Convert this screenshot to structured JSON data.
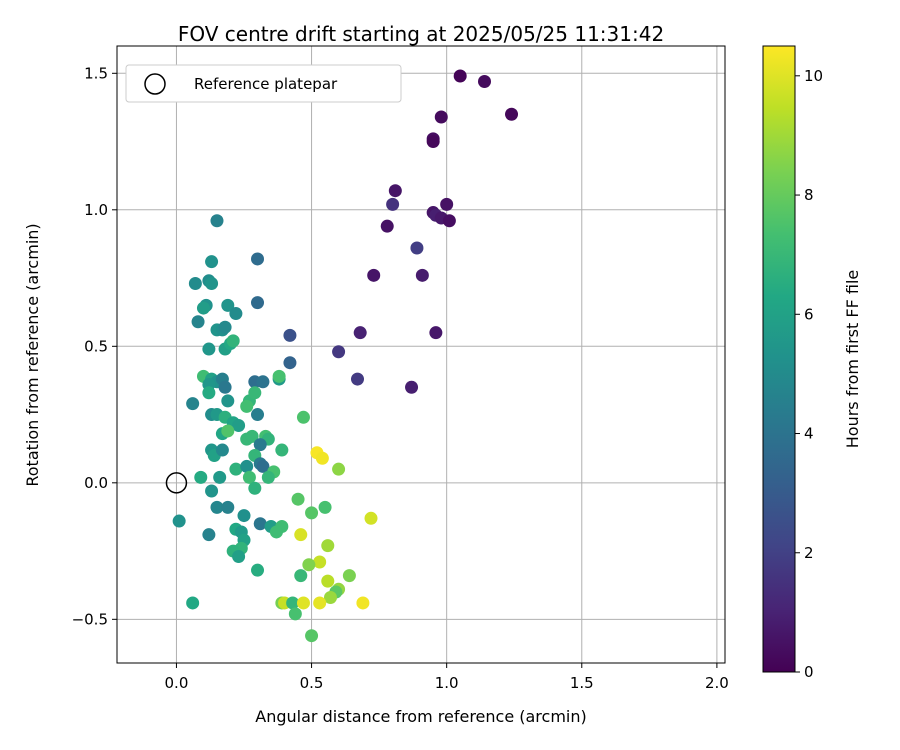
{
  "chart_data": {
    "type": "scatter",
    "title": "FOV centre drift starting at 2025/05/25 11:31:42",
    "xlabel": "Angular distance from reference (arcmin)",
    "ylabel": "Rotation from reference (arcmin)",
    "xlim": [
      -0.22,
      2.03
    ],
    "ylim": [
      -0.66,
      1.6
    ],
    "xticks": [
      0.0,
      0.5,
      1.0,
      1.5,
      2.0
    ],
    "xtick_labels": [
      "0.0",
      "0.5",
      "1.0",
      "1.5",
      "2.0"
    ],
    "yticks": [
      -0.5,
      0.0,
      0.5,
      1.0,
      1.5
    ],
    "ytick_labels": [
      "−0.5",
      "0.0",
      "0.5",
      "1.0",
      "1.5"
    ],
    "grid": true,
    "legend": {
      "placement": "top-left",
      "entries": [
        "Reference platepar"
      ]
    },
    "reference_point": {
      "x": 0.0,
      "y": 0.0,
      "label": "Reference platepar"
    },
    "colorbar": {
      "label": "Hours from first FF file",
      "range": [
        0,
        10.5
      ],
      "ticks": [
        0,
        2,
        4,
        6,
        8,
        10
      ],
      "tick_labels": [
        "0",
        "2",
        "4",
        "6",
        "8",
        "10"
      ],
      "colormap": "viridis"
    },
    "points": [
      {
        "x": 1.05,
        "y": 1.49,
        "c": 0.1
      },
      {
        "x": 1.14,
        "y": 1.47,
        "c": 0.3
      },
      {
        "x": 1.24,
        "y": 1.35,
        "c": 0.2
      },
      {
        "x": 0.98,
        "y": 1.34,
        "c": 0.3
      },
      {
        "x": 0.95,
        "y": 1.26,
        "c": 0.4
      },
      {
        "x": 0.95,
        "y": 1.25,
        "c": 0.2
      },
      {
        "x": 0.81,
        "y": 1.07,
        "c": 0.6
      },
      {
        "x": 0.8,
        "y": 1.02,
        "c": 1.5
      },
      {
        "x": 1.0,
        "y": 1.02,
        "c": 0.5
      },
      {
        "x": 0.95,
        "y": 0.99,
        "c": 0.6
      },
      {
        "x": 0.96,
        "y": 0.98,
        "c": 0.9
      },
      {
        "x": 0.98,
        "y": 0.97,
        "c": 0.7
      },
      {
        "x": 1.01,
        "y": 0.96,
        "c": 0.4
      },
      {
        "x": 0.78,
        "y": 0.94,
        "c": 0.5
      },
      {
        "x": 0.89,
        "y": 0.86,
        "c": 1.9
      },
      {
        "x": 0.73,
        "y": 0.76,
        "c": 0.6
      },
      {
        "x": 0.91,
        "y": 0.76,
        "c": 0.8
      },
      {
        "x": 0.68,
        "y": 0.55,
        "c": 1.0
      },
      {
        "x": 0.96,
        "y": 0.55,
        "c": 0.7
      },
      {
        "x": 0.6,
        "y": 0.48,
        "c": 1.7
      },
      {
        "x": 0.67,
        "y": 0.38,
        "c": 1.8
      },
      {
        "x": 0.87,
        "y": 0.35,
        "c": 0.9
      },
      {
        "x": 0.42,
        "y": 0.54,
        "c": 2.6
      },
      {
        "x": 0.42,
        "y": 0.44,
        "c": 3.3
      },
      {
        "x": 0.3,
        "y": 0.82,
        "c": 3.7
      },
      {
        "x": 0.3,
        "y": 0.66,
        "c": 3.6
      },
      {
        "x": 0.15,
        "y": 0.96,
        "c": 4.6
      },
      {
        "x": 0.07,
        "y": 0.73,
        "c": 5.0
      },
      {
        "x": 0.13,
        "y": 0.81,
        "c": 5.3
      },
      {
        "x": 0.12,
        "y": 0.74,
        "c": 5.1
      },
      {
        "x": 0.13,
        "y": 0.73,
        "c": 5.4
      },
      {
        "x": 0.11,
        "y": 0.65,
        "c": 5.3
      },
      {
        "x": 0.1,
        "y": 0.64,
        "c": 5.8
      },
      {
        "x": 0.19,
        "y": 0.65,
        "c": 5.4
      },
      {
        "x": 0.22,
        "y": 0.62,
        "c": 5.0
      },
      {
        "x": 0.08,
        "y": 0.59,
        "c": 4.7
      },
      {
        "x": 0.15,
        "y": 0.56,
        "c": 5.4
      },
      {
        "x": 0.17,
        "y": 0.56,
        "c": 5.2
      },
      {
        "x": 0.18,
        "y": 0.57,
        "c": 4.9
      },
      {
        "x": 0.12,
        "y": 0.49,
        "c": 5.5
      },
      {
        "x": 0.18,
        "y": 0.49,
        "c": 5.9
      },
      {
        "x": 0.2,
        "y": 0.51,
        "c": 6.3
      },
      {
        "x": 0.21,
        "y": 0.52,
        "c": 6.8
      },
      {
        "x": 0.1,
        "y": 0.39,
        "c": 7.2
      },
      {
        "x": 0.13,
        "y": 0.38,
        "c": 6.0
      },
      {
        "x": 0.15,
        "y": 0.37,
        "c": 5.3
      },
      {
        "x": 0.17,
        "y": 0.38,
        "c": 4.5
      },
      {
        "x": 0.18,
        "y": 0.35,
        "c": 4.2
      },
      {
        "x": 0.12,
        "y": 0.36,
        "c": 5.5
      },
      {
        "x": 0.12,
        "y": 0.33,
        "c": 6.4
      },
      {
        "x": 0.06,
        "y": 0.29,
        "c": 4.7
      },
      {
        "x": 0.29,
        "y": 0.37,
        "c": 3.8
      },
      {
        "x": 0.32,
        "y": 0.37,
        "c": 4.0
      },
      {
        "x": 0.38,
        "y": 0.38,
        "c": 5.6
      },
      {
        "x": 0.38,
        "y": 0.39,
        "c": 7.4
      },
      {
        "x": 0.13,
        "y": 0.25,
        "c": 5.1
      },
      {
        "x": 0.15,
        "y": 0.25,
        "c": 5.6
      },
      {
        "x": 0.18,
        "y": 0.24,
        "c": 6.6
      },
      {
        "x": 0.19,
        "y": 0.3,
        "c": 5.4
      },
      {
        "x": 0.27,
        "y": 0.3,
        "c": 6.9
      },
      {
        "x": 0.29,
        "y": 0.33,
        "c": 7.0
      },
      {
        "x": 0.26,
        "y": 0.28,
        "c": 7.3
      },
      {
        "x": 0.3,
        "y": 0.25,
        "c": 4.4
      },
      {
        "x": 0.21,
        "y": 0.22,
        "c": 6.1
      },
      {
        "x": 0.23,
        "y": 0.21,
        "c": 5.8
      },
      {
        "x": 0.17,
        "y": 0.18,
        "c": 6.2
      },
      {
        "x": 0.19,
        "y": 0.19,
        "c": 7.6
      },
      {
        "x": 0.26,
        "y": 0.16,
        "c": 7.0
      },
      {
        "x": 0.28,
        "y": 0.17,
        "c": 7.0
      },
      {
        "x": 0.33,
        "y": 0.17,
        "c": 7.3
      },
      {
        "x": 0.34,
        "y": 0.16,
        "c": 6.8
      },
      {
        "x": 0.31,
        "y": 0.14,
        "c": 4.3
      },
      {
        "x": 0.13,
        "y": 0.12,
        "c": 5.5
      },
      {
        "x": 0.14,
        "y": 0.1,
        "c": 6.0
      },
      {
        "x": 0.17,
        "y": 0.12,
        "c": 4.9
      },
      {
        "x": 0.29,
        "y": 0.1,
        "c": 6.9
      },
      {
        "x": 0.31,
        "y": 0.07,
        "c": 4.3
      },
      {
        "x": 0.32,
        "y": 0.06,
        "c": 3.8
      },
      {
        "x": 0.22,
        "y": 0.05,
        "c": 6.7
      },
      {
        "x": 0.26,
        "y": 0.06,
        "c": 5.2
      },
      {
        "x": 0.36,
        "y": 0.04,
        "c": 7.4
      },
      {
        "x": 0.39,
        "y": 0.12,
        "c": 6.9
      },
      {
        "x": 0.34,
        "y": 0.02,
        "c": 6.9
      },
      {
        "x": 0.09,
        "y": 0.02,
        "c": 6.4
      },
      {
        "x": 0.16,
        "y": 0.02,
        "c": 5.6
      },
      {
        "x": 0.27,
        "y": 0.02,
        "c": 7.2
      },
      {
        "x": 0.13,
        "y": -0.03,
        "c": 5.4
      },
      {
        "x": 0.29,
        "y": -0.02,
        "c": 6.7
      },
      {
        "x": 0.45,
        "y": -0.06,
        "c": 7.7
      },
      {
        "x": 0.5,
        "y": -0.11,
        "c": 7.7
      },
      {
        "x": 0.55,
        "y": -0.09,
        "c": 7.4
      },
      {
        "x": 0.15,
        "y": -0.09,
        "c": 4.8
      },
      {
        "x": 0.19,
        "y": -0.09,
        "c": 4.6
      },
      {
        "x": 0.25,
        "y": -0.12,
        "c": 5.2
      },
      {
        "x": 0.31,
        "y": -0.15,
        "c": 4.1
      },
      {
        "x": 0.35,
        "y": -0.16,
        "c": 5.8
      },
      {
        "x": 0.39,
        "y": -0.16,
        "c": 7.2
      },
      {
        "x": 0.37,
        "y": -0.18,
        "c": 7.2
      },
      {
        "x": 0.22,
        "y": -0.17,
        "c": 6.3
      },
      {
        "x": 0.24,
        "y": -0.18,
        "c": 5.7
      },
      {
        "x": 0.12,
        "y": -0.19,
        "c": 4.6
      },
      {
        "x": 0.01,
        "y": -0.14,
        "c": 5.3
      },
      {
        "x": 0.25,
        "y": -0.21,
        "c": 6.0
      },
      {
        "x": 0.24,
        "y": -0.24,
        "c": 6.8
      },
      {
        "x": 0.21,
        "y": -0.25,
        "c": 6.7
      },
      {
        "x": 0.23,
        "y": -0.27,
        "c": 5.9
      },
      {
        "x": 0.46,
        "y": -0.19,
        "c": 9.9
      },
      {
        "x": 0.56,
        "y": -0.23,
        "c": 9.0
      },
      {
        "x": 0.53,
        "y": -0.29,
        "c": 9.6
      },
      {
        "x": 0.49,
        "y": -0.3,
        "c": 8.5
      },
      {
        "x": 0.46,
        "y": -0.34,
        "c": 7.0
      },
      {
        "x": 0.3,
        "y": -0.32,
        "c": 6.5
      },
      {
        "x": 0.56,
        "y": -0.36,
        "c": 9.4
      },
      {
        "x": 0.64,
        "y": -0.34,
        "c": 8.4
      },
      {
        "x": 0.6,
        "y": -0.39,
        "c": 8.8
      },
      {
        "x": 0.59,
        "y": -0.4,
        "c": 7.8
      },
      {
        "x": 0.57,
        "y": -0.42,
        "c": 8.9
      },
      {
        "x": 0.39,
        "y": -0.44,
        "c": 8.3
      },
      {
        "x": 0.4,
        "y": -0.44,
        "c": 9.6
      },
      {
        "x": 0.43,
        "y": -0.44,
        "c": 6.9
      },
      {
        "x": 0.47,
        "y": -0.44,
        "c": 10.0
      },
      {
        "x": 0.53,
        "y": -0.44,
        "c": 10.1
      },
      {
        "x": 0.69,
        "y": -0.44,
        "c": 10.3
      },
      {
        "x": 0.44,
        "y": -0.48,
        "c": 7.4
      },
      {
        "x": 0.5,
        "y": -0.56,
        "c": 7.7
      },
      {
        "x": 0.06,
        "y": -0.44,
        "c": 6.3
      },
      {
        "x": 0.72,
        "y": -0.13,
        "c": 9.8
      },
      {
        "x": 0.52,
        "y": 0.11,
        "c": 10.4
      },
      {
        "x": 0.54,
        "y": 0.09,
        "c": 10.3
      },
      {
        "x": 0.6,
        "y": 0.05,
        "c": 8.7
      },
      {
        "x": 0.47,
        "y": 0.24,
        "c": 7.5
      }
    ]
  }
}
